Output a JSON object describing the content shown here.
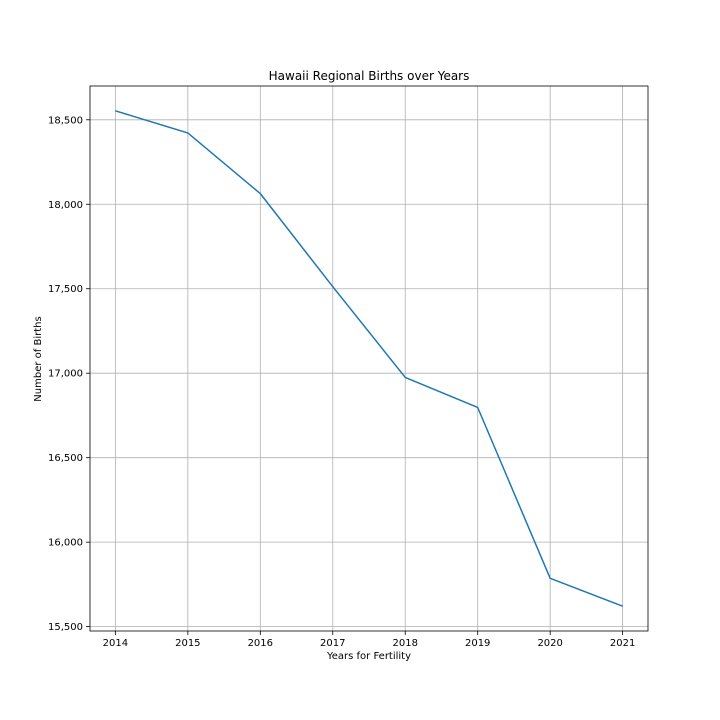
{
  "chart_data": {
    "type": "line",
    "title": "Hawaii Regional Births over Years",
    "xlabel": "Years for Fertility",
    "ylabel": "Number of Births",
    "x": [
      2014,
      2015,
      2016,
      2017,
      2018,
      2019,
      2020,
      2021
    ],
    "series": [
      {
        "values": [
          18553,
          18422,
          18063,
          17512,
          16975,
          16797,
          15786,
          15621
        ],
        "color": "#1f77b4"
      }
    ],
    "xticks": [
      "2014",
      "2015",
      "2016",
      "2017",
      "2018",
      "2019",
      "2020",
      "2021"
    ],
    "yticks": [
      15500,
      16000,
      16500,
      17000,
      17500,
      18000,
      18500
    ],
    "ytick_labels": [
      "15,500",
      "16,000",
      "16,500",
      "17,000",
      "17,500",
      "18,000",
      "18,500"
    ],
    "xlim": [
      2013.65,
      2021.35
    ],
    "ylim": [
      15474,
      18700
    ],
    "grid": true,
    "legend": false
  }
}
